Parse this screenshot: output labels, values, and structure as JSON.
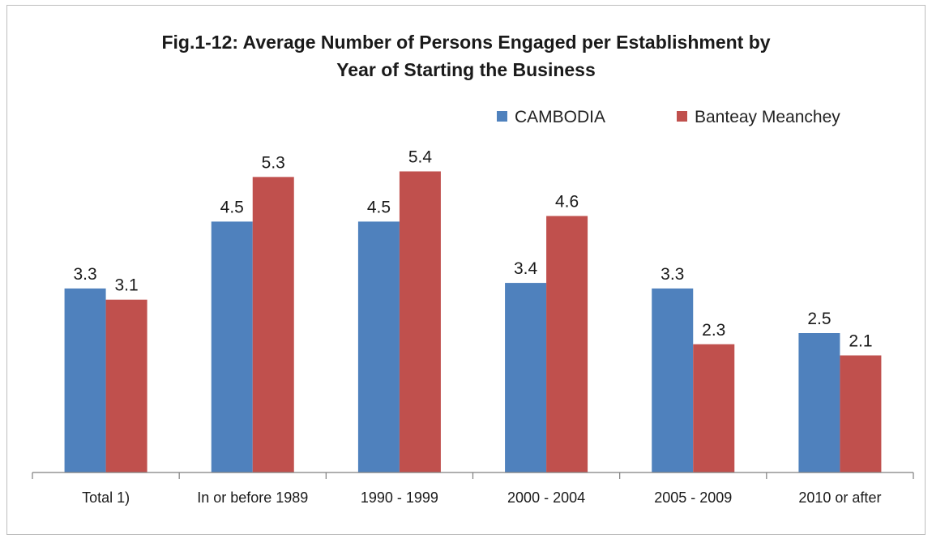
{
  "chart_data": {
    "type": "bar",
    "title_line1": "Fig.1-12: Average Number of Persons Engaged per Establishment by",
    "title_line2": "Year of Starting the Business",
    "categories": [
      "Total 1)",
      "In or before 1989",
      "1990 - 1999",
      "2000 - 2004",
      "2005 - 2009",
      "2010 or after"
    ],
    "series": [
      {
        "name": "CAMBODIA",
        "color": "#4f81bd",
        "values": [
          3.3,
          4.5,
          4.5,
          3.4,
          3.3,
          2.5
        ]
      },
      {
        "name": "Banteay Meanchey",
        "color": "#c0504d",
        "values": [
          3.1,
          5.3,
          5.4,
          4.6,
          2.3,
          2.1
        ]
      }
    ],
    "ylim": [
      0,
      6.0
    ],
    "grid": false,
    "legend_position": "top-right",
    "xlabel": "",
    "ylabel": ""
  }
}
